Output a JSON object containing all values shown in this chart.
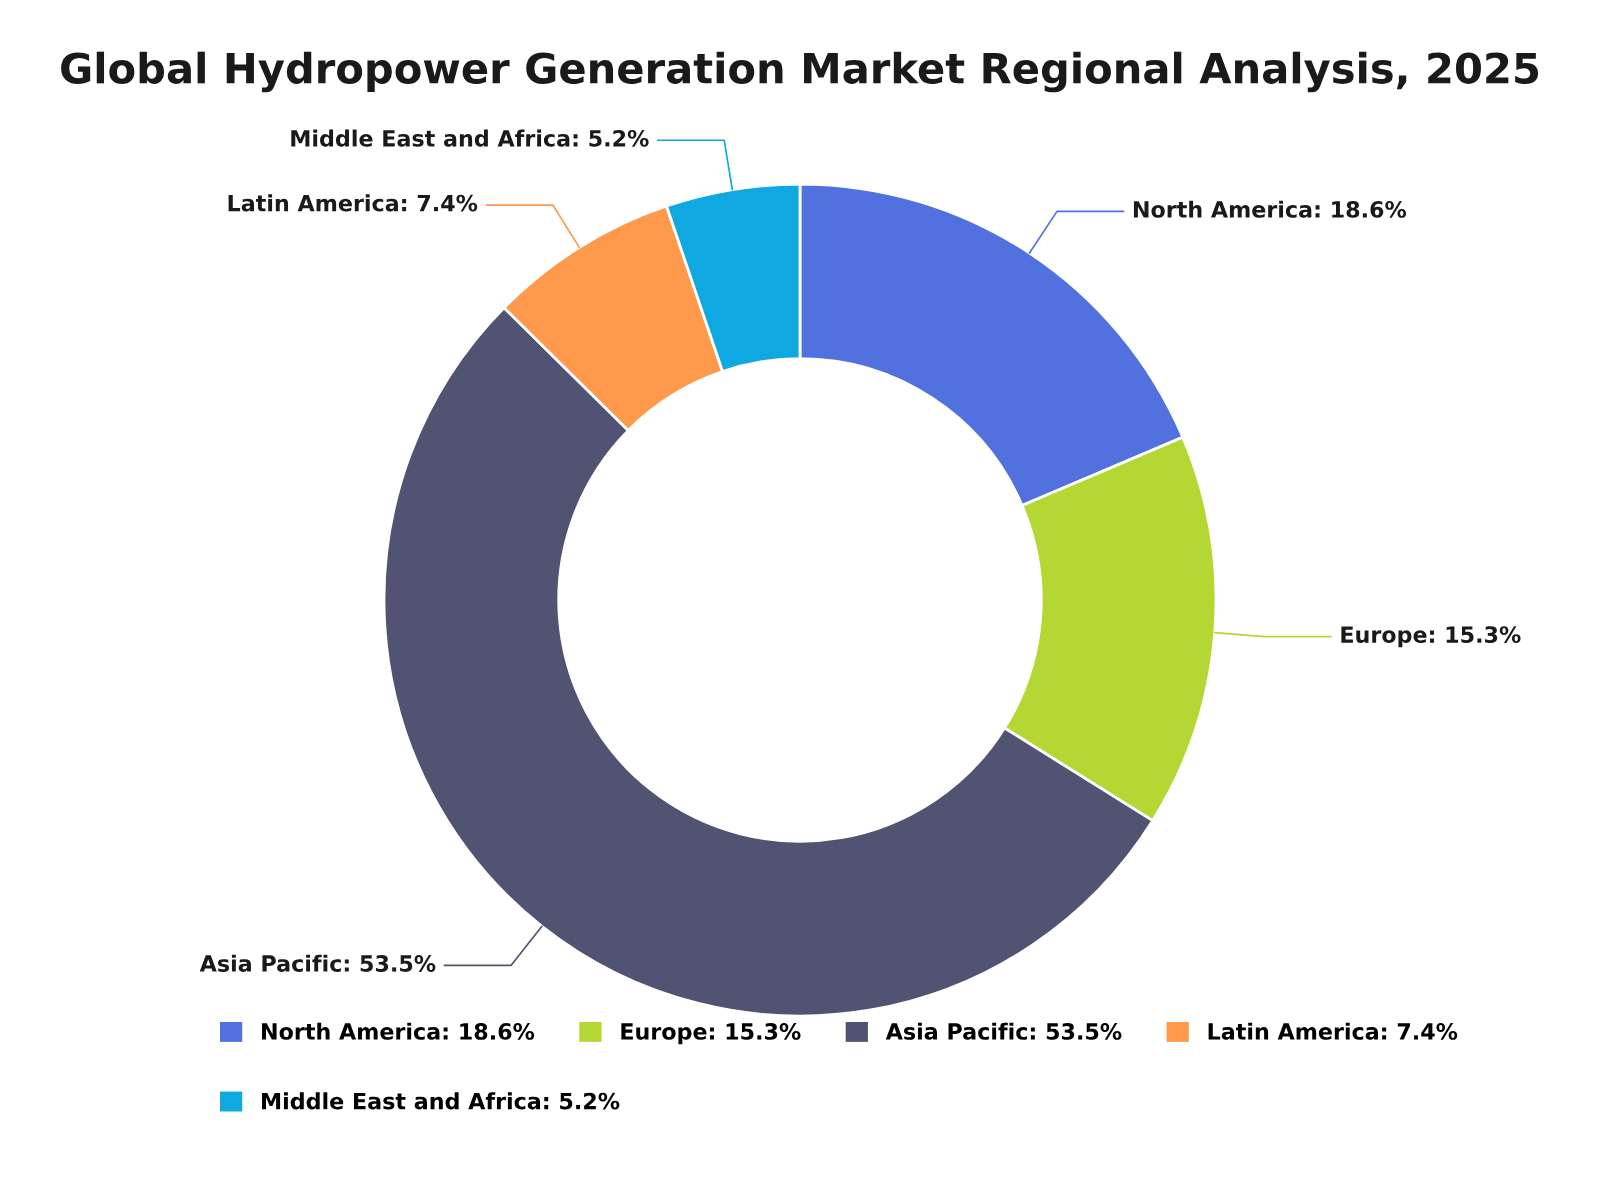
{
  "chart_data": {
    "type": "donut",
    "title": "Global Hydropower Generation Market Regional Analysis, 2025",
    "categories": [
      "North America: 18.6%",
      "Europe: 15.3%",
      "Asia Pacific: 53.5%",
      "Latin America: 7.4%",
      "Middle East and Africa: 5.2%"
    ],
    "values": [
      18.6,
      15.3,
      53.5,
      7.4,
      5.2
    ],
    "colors": [
      "#5171df",
      "#b5d733",
      "#505372",
      "#ff9a4d",
      "#10a8e0"
    ],
    "legend": "bottom"
  }
}
